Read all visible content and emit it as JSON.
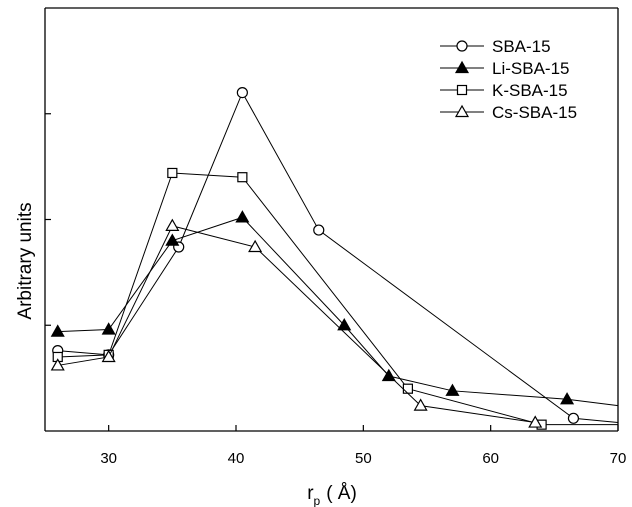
{
  "chart_data": {
    "type": "line",
    "xlabel_main": "r",
    "xlabel_sub": "p",
    "xlabel_unit": "( Å)",
    "ylabel": "Arbitrary units",
    "xlim": [
      25,
      70
    ],
    "ylim": [
      0,
      100
    ],
    "x_ticks": [
      30,
      40,
      50,
      60,
      70
    ],
    "x_tick_labels": [
      "30",
      "40",
      "50",
      "60",
      "70"
    ],
    "y_ticks": [
      25,
      50,
      75
    ],
    "show_y_tick_labels": false,
    "grid": false,
    "legend_position": "top-right",
    "series": [
      {
        "name": "SBA-15",
        "marker": "circle-open",
        "x": [
          26,
          30,
          35.5,
          40.5,
          46.5,
          66.5,
          70
        ],
        "y": [
          19,
          18,
          43.5,
          80,
          47.5,
          3,
          2
        ]
      },
      {
        "name": "Li-SBA-15",
        "marker": "triangle-filled",
        "x": [
          26,
          30,
          35,
          40.5,
          48.5,
          52,
          57,
          66,
          70
        ],
        "y": [
          23.5,
          24,
          45,
          50.5,
          25,
          13,
          9.5,
          7.5,
          6
        ]
      },
      {
        "name": "K-SBA-15",
        "marker": "square-open",
        "x": [
          26,
          30,
          35,
          40.5,
          53.5,
          64,
          70
        ],
        "y": [
          17.5,
          18,
          61,
          60,
          10,
          1.5,
          1.5
        ]
      },
      {
        "name": "Cs-SBA-15",
        "marker": "triangle-open",
        "x": [
          26,
          30,
          35,
          41.5,
          54.5,
          63.5
        ],
        "y": [
          15.5,
          17.5,
          48.5,
          43.5,
          6,
          2
        ]
      }
    ]
  }
}
